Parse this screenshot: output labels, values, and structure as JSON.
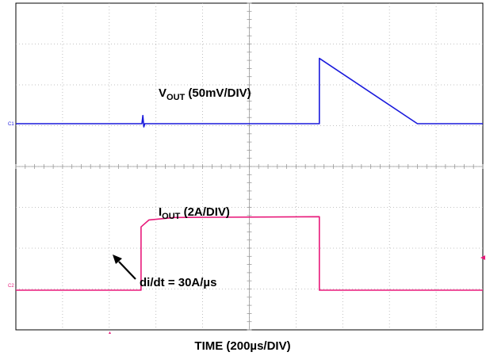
{
  "chart_data": {
    "type": "line",
    "title": "",
    "xlabel": "TIME (200µs/DIV)",
    "x_unit_per_div": "200µs",
    "x_divisions": 10,
    "grid": true,
    "channels": [
      {
        "marker": "C1",
        "label_main": "V",
        "label_sub": "OUT",
        "label_rest": " (50mV/DIV)",
        "color": "#1a1adc",
        "unit_per_div": "50mV",
        "description_points_div": [
          [
            0,
            0
          ],
          [
            2.7,
            0
          ],
          [
            2.72,
            0.2
          ],
          [
            2.74,
            -0.08
          ],
          [
            2.76,
            0
          ],
          [
            6.5,
            0
          ],
          [
            6.5,
            1.6
          ],
          [
            8.6,
            0
          ],
          [
            10,
            0
          ]
        ]
      },
      {
        "marker": "C2",
        "label_main": "I",
        "label_sub": "OUT",
        "label_rest": " (2A/DIV)",
        "color": "#e8197a",
        "unit_per_div": "2A",
        "description_points_div": [
          [
            0,
            0
          ],
          [
            2.68,
            0
          ],
          [
            2.68,
            1.55
          ],
          [
            2.85,
            1.72
          ],
          [
            3.4,
            1.78
          ],
          [
            6.5,
            1.8
          ],
          [
            6.5,
            0
          ],
          [
            10,
            0
          ]
        ]
      }
    ],
    "annotations": [
      {
        "text": "di/dt = 30A/µs"
      }
    ]
  }
}
